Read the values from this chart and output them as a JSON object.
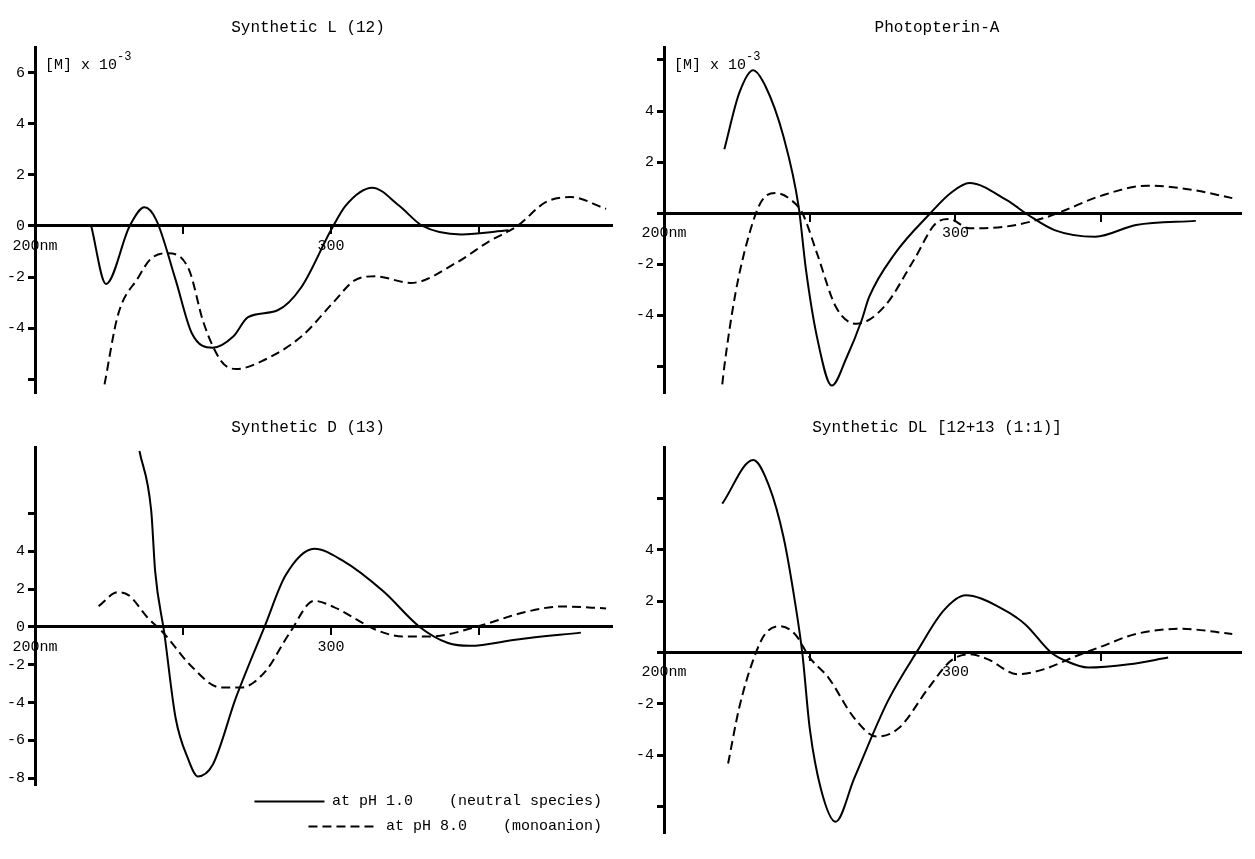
{
  "chart_data": [
    {
      "type": "line",
      "title": "Synthetic L (12)",
      "ylabel": "[M] x 10$^{-3}$",
      "grid": false,
      "marker": "none",
      "xlim": [
        200,
        395
      ],
      "xticks": [
        {
          "value": 200,
          "label": "200nm"
        },
        {
          "value": 250,
          "label": null
        },
        {
          "value": 300,
          "label": "300"
        },
        {
          "value": 350,
          "label": null
        }
      ],
      "ylim": [
        -6.5,
        7
      ],
      "yticks": [
        {
          "value": -6,
          "label": null
        },
        -4,
        -2,
        0,
        2,
        4,
        6
      ],
      "series": [
        {
          "color": "#000000",
          "line_style": "solid",
          "x": [
            219,
            224,
            232,
            237,
            241,
            247.5,
            253,
            260,
            267,
            272,
            282,
            290,
            300,
            305,
            314,
            323,
            331,
            344,
            360
          ],
          "values": [
            0,
            -2.27,
            0,
            0.73,
            0.23,
            -2.1,
            -4.2,
            -4.77,
            -4.33,
            -3.57,
            -3.3,
            -2.4,
            -0.17,
            0.8,
            1.5,
            0.8,
            0,
            -0.33,
            -0.17
          ]
        },
        {
          "color": "#000000",
          "line_style": "dashed",
          "x": [
            223.5,
            228,
            235,
            239,
            245,
            252,
            257,
            263,
            268,
            276.5,
            290,
            301,
            308,
            315,
            327,
            342.5,
            353.5,
            363,
            372.6,
            381,
            393
          ],
          "values": [
            -6.2,
            -3.5,
            -2.0,
            -1.3,
            -1.07,
            -1.7,
            -3.8,
            -5.3,
            -5.6,
            -5.3,
            -4.33,
            -2.97,
            -2.13,
            -1.97,
            -2.23,
            -1.43,
            -0.6,
            0,
            0.93,
            1.13,
            0.67
          ]
        }
      ]
    },
    {
      "type": "line",
      "title": "Photopterin-A",
      "ylabel": "[M] x 10$^{-3}$",
      "grid": false,
      "marker": "none",
      "xlim": [
        200,
        398
      ],
      "xticks": [
        {
          "value": 200,
          "label": "200nm"
        },
        {
          "value": 250,
          "label": null
        },
        {
          "value": 300,
          "label": "300"
        },
        {
          "value": 350,
          "label": null
        }
      ],
      "ylim": [
        -7,
        6.5
      ],
      "yticks": [
        {
          "value": -6,
          "label": null
        },
        -4,
        -2,
        {
          "value": 0,
          "label": null
        },
        2,
        4,
        {
          "value": 6,
          "label": null
        }
      ],
      "series": [
        {
          "color": "#000000",
          "line_style": "solid",
          "x": [
            220.7,
            225.8,
            230.6,
            234.7,
            241,
            246.2,
            248.7,
            252.5,
            257.6,
            262.7,
            267.8,
            270.4,
            279.3,
            291.4,
            298.4,
            304.8,
            317.5,
            325,
            334,
            348,
            362,
            382.5
          ],
          "values": [
            2.5,
            4.7,
            5.6,
            5.0,
            3.0,
            0.26,
            -2.2,
            -4.85,
            -6.75,
            -5.64,
            -4.2,
            -3.28,
            -1.57,
            0,
            0.79,
            1.18,
            0.52,
            -0.07,
            -0.66,
            -0.92,
            -0.46,
            -0.3
          ]
        },
        {
          "color": "#000000",
          "line_style": "dashed",
          "x": [
            220,
            220.7,
            224.5,
            229,
            233.4,
            238.5,
            243.6,
            247.5,
            252.5,
            259,
            266,
            275.5,
            285.7,
            293.3,
            297.8,
            304.8,
            317.5,
            330,
            336.6,
            349.4,
            366,
            381,
            395
          ],
          "values": [
            -6.7,
            -6.0,
            -3.15,
            -0.92,
            0.46,
            0.79,
            0.52,
            0,
            -1.57,
            -3.67,
            -4.33,
            -3.67,
            -1.84,
            -0.39,
            -0.23,
            -0.59,
            -0.52,
            -0.2,
            0.07,
            0.66,
            1.08,
            0.92,
            0.59
          ]
        }
      ]
    },
    {
      "type": "line",
      "title": "Synthetic D (13)",
      "grid": false,
      "marker": "none",
      "legend": "bottom right",
      "xlim": [
        200,
        395
      ],
      "xticks": [
        {
          "value": 200,
          "label": "200nm"
        },
        {
          "value": 250,
          "label": null
        },
        {
          "value": 300,
          "label": "300"
        },
        {
          "value": 350,
          "label": null
        }
      ],
      "ylim": [
        -8.3,
        9.5
      ],
      "yticks": [
        -8,
        -6,
        -4,
        -2,
        0,
        2,
        4,
        {
          "value": 6,
          "label": null
        }
      ],
      "series": [
        {
          "name": "at pH 1.0    (neutral species)",
          "color": "#000000",
          "line_style": "solid",
          "x": [
            235.3,
            239.3,
            240.6,
            243.7,
            247.5,
            251.8,
            255,
            260,
            268,
            277.8,
            284.6,
            294.4,
            304,
            317.8,
            330,
            339.6,
            347,
            363,
            384.5
          ],
          "values": [
            9.3,
            6.1,
            2.95,
            -0.33,
            -4.8,
            -7.0,
            -7.9,
            -7.3,
            -3.7,
            0.1,
            2.7,
            4.13,
            3.5,
            1.87,
            0,
            -0.85,
            -1.0,
            -0.66,
            -0.3
          ]
        },
        {
          "name": "at pH 8.0    (monoanion)",
          "color": "#000000",
          "line_style": "dashed",
          "x": [
            221.5,
            228,
            231.7,
            238,
            243.5,
            253,
            262.7,
            269.6,
            277.8,
            286,
            294.4,
            301,
            316,
            324.4,
            334,
            349,
            365.7,
            378,
            393
          ],
          "values": [
            1.1,
            1.84,
            1.67,
            0.5,
            -0.33,
            -2.1,
            -3.2,
            -3.2,
            -2.36,
            -0.33,
            1.38,
            1.05,
            -0.2,
            -0.5,
            -0.5,
            0,
            0.79,
            1.08,
            0.98
          ]
        }
      ]
    },
    {
      "type": "line",
      "title": "Synthetic DL [12+13 (1:1)]",
      "grid": false,
      "marker": "none",
      "xlim": [
        200,
        398
      ],
      "xticks": [
        {
          "value": 200,
          "label": "200nm"
        },
        {
          "value": 250,
          "label": null
        },
        {
          "value": 300,
          "label": "300"
        },
        {
          "value": 350,
          "label": null
        }
      ],
      "ylim": [
        -7,
        8
      ],
      "yticks": [
        {
          "value": -6,
          "label": null
        },
        -4,
        -2,
        {
          "value": 0,
          "label": null
        },
        2,
        4,
        {
          "value": 6,
          "label": null
        }
      ],
      "series": [
        {
          "color": "#000000",
          "line_style": "solid",
          "x": [
            220,
            230.6,
            236,
            241,
            244.9,
            247.5,
            250,
            253.8,
            258.9,
            265.3,
            276.8,
            287,
            296,
            303.5,
            315,
            323.9,
            332.8,
            337.9,
            345.5,
            359.6,
            373
          ],
          "values": [
            5.8,
            7.5,
            6.5,
            4.5,
            2.0,
            -0.07,
            -2.95,
            -5.3,
            -6.6,
            -4.9,
            -1.9,
            0.07,
            1.64,
            2.23,
            1.77,
            1.1,
            0,
            -0.33,
            -0.59,
            -0.46,
            -0.2
          ]
        },
        {
          "color": "#000000",
          "line_style": "dashed",
          "x": [
            222,
            225.8,
            230.9,
            234.7,
            239.8,
            244.9,
            250,
            256.4,
            265.3,
            273,
            280.6,
            290.8,
            298.4,
            304.8,
            311,
            321.3,
            330.2,
            341.7,
            349.4,
            362,
            377.4,
            395
          ],
          "values": [
            -4.33,
            -2.16,
            -0.2,
            0.72,
            1.02,
            0.72,
            -0.2,
            -0.98,
            -2.56,
            -3.28,
            -2.95,
            -1.38,
            -0.33,
            -0.07,
            -0.26,
            -0.85,
            -0.66,
            -0.13,
            0.2,
            0.72,
            0.92,
            0.72
          ]
        }
      ]
    }
  ]
}
